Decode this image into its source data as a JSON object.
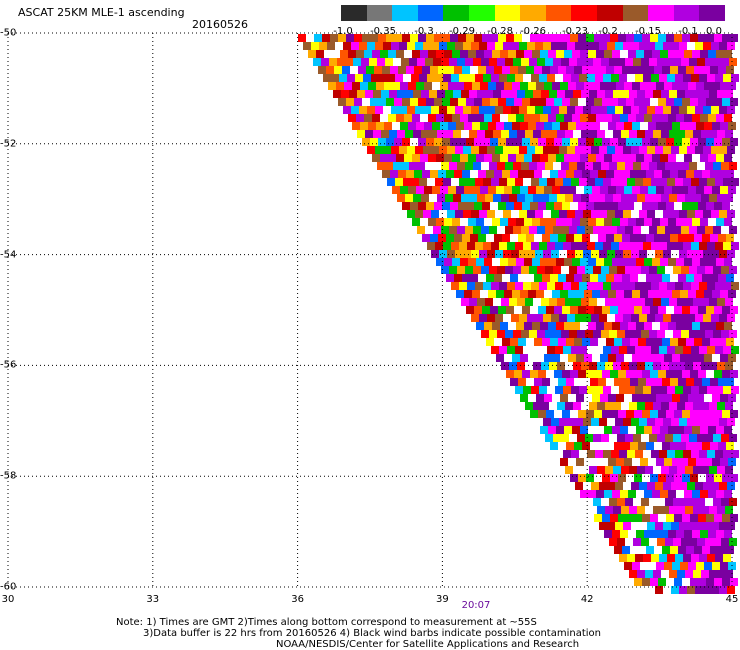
{
  "header": {
    "title": "ASCAT 25KM MLE-1 ascending",
    "date": "20160526"
  },
  "legend": {
    "labels": [
      "-1.0",
      "-0.35",
      "-0.3",
      "-0.29",
      "-0.28",
      "-0.26",
      "-0.23",
      "-0.2",
      "-0.15",
      "-0.1",
      "0.0"
    ],
    "colors": [
      "#2a2a2a",
      "#777777",
      "#00c4ff",
      "#0066ff",
      "#00c000",
      "#22ff00",
      "#ffff00",
      "#ffaa00",
      "#ff5500",
      "#ff0000",
      "#c00000",
      "#9a5a2a",
      "#ff00ff",
      "#b000e0",
      "#7a00a0"
    ]
  },
  "axes": {
    "x_ticks": [
      "30",
      "33",
      "36",
      "39",
      "42",
      "45"
    ],
    "y_ticks": [
      "-50",
      "-52",
      "-54",
      "-56",
      "-58",
      "-60"
    ]
  },
  "time_label": "20:07",
  "notes": [
    "Note: 1) Times are GMT 2)Times along bottom correspond to measurement at ~55S",
    "3)Data buffer is 22 hrs from 20160526 4) Black wind barbs indicate possible contamination",
    "NOAA/NESDIS/Center for Satellite Applications and Research"
  ]
}
